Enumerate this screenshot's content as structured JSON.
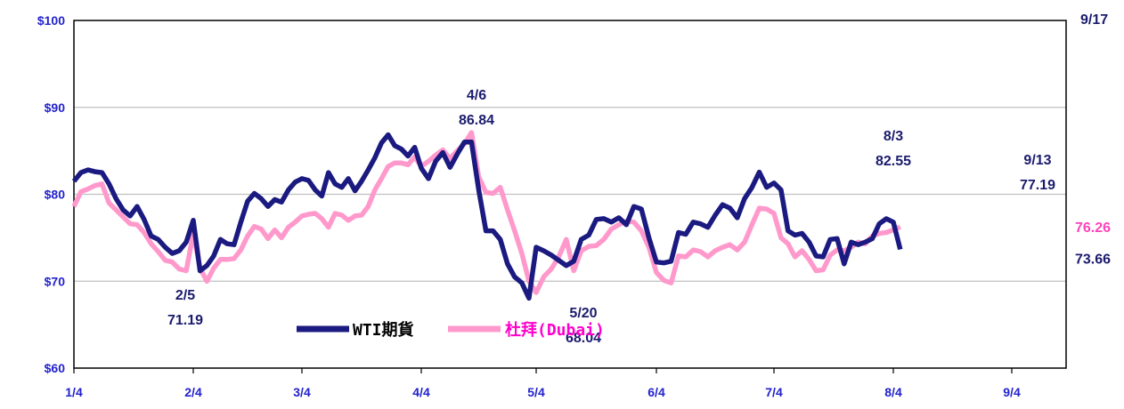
{
  "chart_data": {
    "type": "line",
    "date_label_top_right": "9/17",
    "ylim": [
      60,
      100
    ],
    "y_ticks": [
      {
        "value": 100,
        "label": "$100"
      },
      {
        "value": 90,
        "label": "$90"
      },
      {
        "value": 80,
        "label": "$80"
      },
      {
        "value": 70,
        "label": "$70"
      },
      {
        "value": 60,
        "label": "$60"
      }
    ],
    "x_ticks": [
      "1/4",
      "2/4",
      "3/4",
      "4/4",
      "5/4",
      "6/4",
      "7/4",
      "8/4",
      "9/4"
    ],
    "grid": true,
    "legend_placement": "bottom-center",
    "series": [
      {
        "name": "WTI期貨",
        "color": "#1a1a80",
        "end_label": "73.66",
        "points": [
          [
            0,
            81.5
          ],
          [
            1,
            82.5
          ],
          [
            2,
            82.8
          ],
          [
            3,
            82.6
          ],
          [
            4,
            82.5
          ],
          [
            5,
            81.2
          ],
          [
            6,
            79.5
          ],
          [
            7,
            78.2
          ],
          [
            8,
            77.5
          ],
          [
            9,
            78.6
          ],
          [
            10,
            77.1
          ],
          [
            11,
            75.2
          ],
          [
            12,
            74.8
          ],
          [
            13,
            73.9
          ],
          [
            14,
            73.2
          ],
          [
            15,
            73.5
          ],
          [
            16,
            74.5
          ],
          [
            17,
            77.0
          ],
          [
            18,
            71.19
          ],
          [
            19,
            71.8
          ],
          [
            20,
            72.9
          ],
          [
            21,
            74.8
          ],
          [
            22,
            74.3
          ],
          [
            23,
            74.2
          ],
          [
            24,
            76.8
          ],
          [
            25,
            79.2
          ],
          [
            26,
            80.1
          ],
          [
            27,
            79.5
          ],
          [
            28,
            78.6
          ],
          [
            29,
            79.4
          ],
          [
            30,
            79.1
          ],
          [
            31,
            80.5
          ],
          [
            32,
            81.4
          ],
          [
            33,
            81.8
          ],
          [
            34,
            81.6
          ],
          [
            35,
            80.5
          ],
          [
            36,
            79.8
          ],
          [
            37,
            82.5
          ],
          [
            38,
            81.2
          ],
          [
            39,
            80.8
          ],
          [
            40,
            81.8
          ],
          [
            41,
            80.4
          ],
          [
            42,
            81.5
          ],
          [
            43,
            82.8
          ],
          [
            44,
            84.2
          ],
          [
            45,
            85.9
          ],
          [
            46,
            86.84
          ],
          [
            47,
            85.6
          ],
          [
            48,
            85.2
          ],
          [
            49,
            84.4
          ],
          [
            50,
            85.4
          ],
          [
            51,
            83.0
          ],
          [
            52,
            81.8
          ],
          [
            53,
            83.8
          ],
          [
            54,
            84.8
          ],
          [
            55,
            83.1
          ],
          [
            56,
            84.6
          ],
          [
            57,
            86.0
          ],
          [
            58,
            86.0
          ],
          [
            59,
            80.5
          ],
          [
            60,
            75.8
          ],
          [
            61,
            75.8
          ],
          [
            62,
            74.8
          ],
          [
            63,
            72.0
          ],
          [
            64,
            70.5
          ],
          [
            65,
            69.8
          ],
          [
            66,
            68.04
          ],
          [
            67,
            73.9
          ],
          [
            68,
            73.5
          ],
          [
            69,
            73.0
          ],
          [
            70,
            72.4
          ],
          [
            71,
            71.8
          ],
          [
            72,
            72.3
          ],
          [
            73,
            74.8
          ],
          [
            74,
            75.3
          ],
          [
            75,
            77.1
          ],
          [
            76,
            77.2
          ],
          [
            77,
            76.8
          ],
          [
            78,
            77.3
          ],
          [
            79,
            76.5
          ],
          [
            80,
            78.6
          ],
          [
            81,
            78.3
          ],
          [
            82,
            75.0
          ],
          [
            83,
            72.2
          ],
          [
            84,
            72.1
          ],
          [
            85,
            72.3
          ],
          [
            86,
            75.6
          ],
          [
            87,
            75.4
          ],
          [
            88,
            76.8
          ],
          [
            89,
            76.6
          ],
          [
            90,
            76.2
          ],
          [
            91,
            77.6
          ],
          [
            92,
            78.8
          ],
          [
            93,
            78.4
          ],
          [
            94,
            77.3
          ],
          [
            95,
            79.5
          ],
          [
            96,
            80.8
          ],
          [
            97,
            82.55
          ],
          [
            98,
            80.8
          ],
          [
            99,
            81.3
          ],
          [
            100,
            80.5
          ],
          [
            101,
            75.8
          ],
          [
            102,
            75.3
          ],
          [
            103,
            75.5
          ],
          [
            104,
            74.5
          ],
          [
            105,
            72.9
          ],
          [
            106,
            72.8
          ],
          [
            107,
            74.8
          ],
          [
            108,
            74.9
          ],
          [
            109,
            72.0
          ],
          [
            110,
            74.5
          ],
          [
            111,
            74.2
          ],
          [
            112,
            74.5
          ],
          [
            113,
            74.9
          ],
          [
            114,
            76.6
          ],
          [
            115,
            77.19
          ],
          [
            116,
            76.8
          ],
          [
            117,
            73.66
          ]
        ]
      },
      {
        "name": "杜拜(Dubai)",
        "color": "#ff99cc",
        "end_label": "76.26",
        "points": [
          [
            0,
            78.6
          ],
          [
            1,
            80.3
          ],
          [
            2,
            80.6
          ],
          [
            3,
            81.0
          ],
          [
            4,
            81.2
          ],
          [
            5,
            79.0
          ],
          [
            6,
            78.2
          ],
          [
            7,
            77.4
          ],
          [
            8,
            76.6
          ],
          [
            9,
            76.5
          ],
          [
            10,
            75.6
          ],
          [
            11,
            74.3
          ],
          [
            12,
            73.4
          ],
          [
            13,
            72.4
          ],
          [
            14,
            72.2
          ],
          [
            15,
            71.4
          ],
          [
            16,
            71.2
          ],
          [
            17,
            75.5
          ],
          [
            18,
            71.5
          ],
          [
            19,
            70.0
          ],
          [
            20,
            71.5
          ],
          [
            21,
            72.5
          ],
          [
            22,
            72.5
          ],
          [
            23,
            72.6
          ],
          [
            24,
            73.6
          ],
          [
            25,
            75.2
          ],
          [
            26,
            76.3
          ],
          [
            27,
            76.0
          ],
          [
            28,
            74.9
          ],
          [
            29,
            75.9
          ],
          [
            30,
            75.0
          ],
          [
            31,
            76.2
          ],
          [
            32,
            76.8
          ],
          [
            33,
            77.5
          ],
          [
            34,
            77.7
          ],
          [
            35,
            77.8
          ],
          [
            36,
            77.2
          ],
          [
            37,
            76.2
          ],
          [
            38,
            77.8
          ],
          [
            39,
            77.6
          ],
          [
            40,
            77.0
          ],
          [
            41,
            77.5
          ],
          [
            42,
            77.6
          ],
          [
            43,
            78.6
          ],
          [
            44,
            80.5
          ],
          [
            45,
            81.8
          ],
          [
            46,
            83.2
          ],
          [
            47,
            83.6
          ],
          [
            48,
            83.6
          ],
          [
            49,
            83.4
          ],
          [
            50,
            84.3
          ],
          [
            51,
            83.2
          ],
          [
            52,
            83.8
          ],
          [
            53,
            84.5
          ],
          [
            54,
            85.1
          ],
          [
            55,
            84.1
          ],
          [
            56,
            85.0
          ],
          [
            57,
            85.8
          ],
          [
            58,
            87.1
          ],
          [
            59,
            82.0
          ],
          [
            60,
            80.2
          ],
          [
            61,
            80.1
          ],
          [
            62,
            80.8
          ],
          [
            63,
            78.2
          ],
          [
            64,
            75.8
          ],
          [
            65,
            73.2
          ],
          [
            66,
            70.0
          ],
          [
            67,
            68.7
          ],
          [
            68,
            70.5
          ],
          [
            69,
            71.4
          ],
          [
            70,
            72.8
          ],
          [
            71,
            74.8
          ],
          [
            72,
            71.2
          ],
          [
            73,
            73.5
          ],
          [
            74,
            74.0
          ],
          [
            75,
            74.1
          ],
          [
            76,
            74.8
          ],
          [
            77,
            76.0
          ],
          [
            78,
            76.5
          ],
          [
            79,
            76.9
          ],
          [
            80,
            76.8
          ],
          [
            81,
            75.8
          ],
          [
            82,
            73.9
          ],
          [
            83,
            71.0
          ],
          [
            84,
            70.1
          ],
          [
            85,
            69.8
          ],
          [
            86,
            72.9
          ],
          [
            87,
            72.8
          ],
          [
            88,
            73.6
          ],
          [
            89,
            73.4
          ],
          [
            90,
            72.8
          ],
          [
            91,
            73.5
          ],
          [
            92,
            73.9
          ],
          [
            93,
            74.2
          ],
          [
            94,
            73.6
          ],
          [
            95,
            74.5
          ],
          [
            96,
            76.5
          ],
          [
            97,
            78.4
          ],
          [
            98,
            78.3
          ],
          [
            99,
            77.8
          ],
          [
            100,
            75.0
          ],
          [
            101,
            74.3
          ],
          [
            102,
            72.8
          ],
          [
            103,
            73.5
          ],
          [
            104,
            72.5
          ],
          [
            105,
            71.2
          ],
          [
            106,
            71.3
          ],
          [
            107,
            73.0
          ],
          [
            108,
            73.6
          ],
          [
            109,
            73.5
          ],
          [
            110,
            73.9
          ],
          [
            111,
            74.5
          ],
          [
            112,
            74.3
          ],
          [
            113,
            75.2
          ],
          [
            114,
            75.5
          ],
          [
            115,
            75.6
          ],
          [
            116,
            75.9
          ],
          [
            117,
            76.26
          ]
        ]
      }
    ],
    "annotations": [
      {
        "date": "2/5",
        "value": "71.19"
      },
      {
        "date": "4/6",
        "value": "86.84"
      },
      {
        "date": "5/20",
        "value": "68.04"
      },
      {
        "date": "8/3",
        "value": "82.55"
      },
      {
        "date": "9/13",
        "value": "77.19"
      }
    ]
  }
}
